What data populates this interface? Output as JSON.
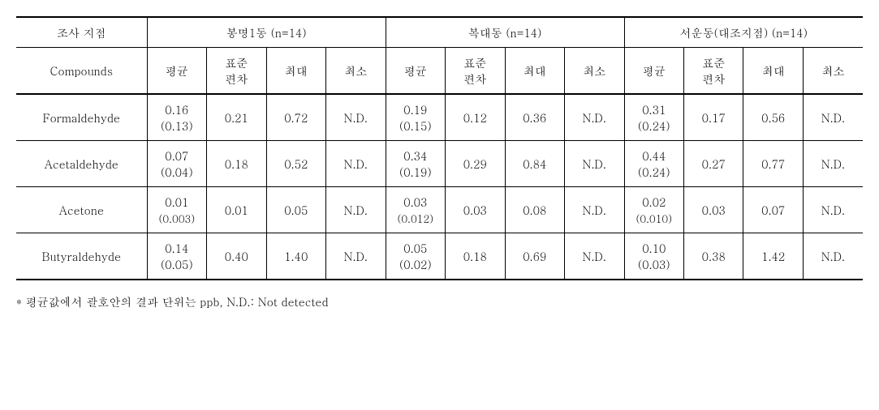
{
  "headers": {
    "site_label": "조사 지점",
    "compounds_label": "Compounds",
    "groups": [
      {
        "name": "봉명1동 (n=14)"
      },
      {
        "name": "복대동 (n=14)"
      },
      {
        "name": "서운동(대조지점) (n=14)"
      }
    ],
    "stats": {
      "mean": "평균",
      "sd": "표준\n편차",
      "max": "최대",
      "min": "최소"
    }
  },
  "rows": [
    {
      "compound": "Formaldehyde",
      "g1": {
        "mean": "0.16",
        "mean2": "(0.13)",
        "sd": "0.21",
        "max": "0.72",
        "min": "N.D."
      },
      "g2": {
        "mean": "0.19",
        "mean2": "(0.15)",
        "sd": "0.12",
        "max": "0.36",
        "min": "N.D."
      },
      "g3": {
        "mean": "0.31",
        "mean2": "(0.24)",
        "sd": "0.17",
        "max": "0.56",
        "min": "N.D."
      }
    },
    {
      "compound": "Acetaldehyde",
      "g1": {
        "mean": "0.07",
        "mean2": "(0.04)",
        "sd": "0.18",
        "max": "0.52",
        "min": "N.D."
      },
      "g2": {
        "mean": "0.34",
        "mean2": "(0.19)",
        "sd": "0.29",
        "max": "0.84",
        "min": "N.D."
      },
      "g3": {
        "mean": "0.44",
        "mean2": "(0.24)",
        "sd": "0.27",
        "max": "0.77",
        "min": "N.D."
      }
    },
    {
      "compound": "Acetone",
      "g1": {
        "mean": "0.01",
        "mean2": "(0.003)",
        "sd": "0.01",
        "max": "0.05",
        "min": "N.D."
      },
      "g2": {
        "mean": "0.03",
        "mean2": "(0.012)",
        "sd": "0.03",
        "max": "0.08",
        "min": "N.D."
      },
      "g3": {
        "mean": "0.02",
        "mean2": "(0.010)",
        "sd": "0.03",
        "max": "0.07",
        "min": "N.D."
      }
    },
    {
      "compound": "Butyraldehyde",
      "g1": {
        "mean": "0.14",
        "mean2": "(0.05)",
        "sd": "0.40",
        "max": "1.40",
        "min": "N.D."
      },
      "g2": {
        "mean": "0.05",
        "mean2": "(0.02)",
        "sd": "0.18",
        "max": "0.69",
        "min": "N.D."
      },
      "g3": {
        "mean": "0.10",
        "mean2": "(0.03)",
        "sd": "0.38",
        "max": "1.42",
        "min": "N.D."
      }
    }
  ],
  "footnote": "* 평균값에서 괄호안의 결과 단위는 ppb, N.D.: Not detected"
}
